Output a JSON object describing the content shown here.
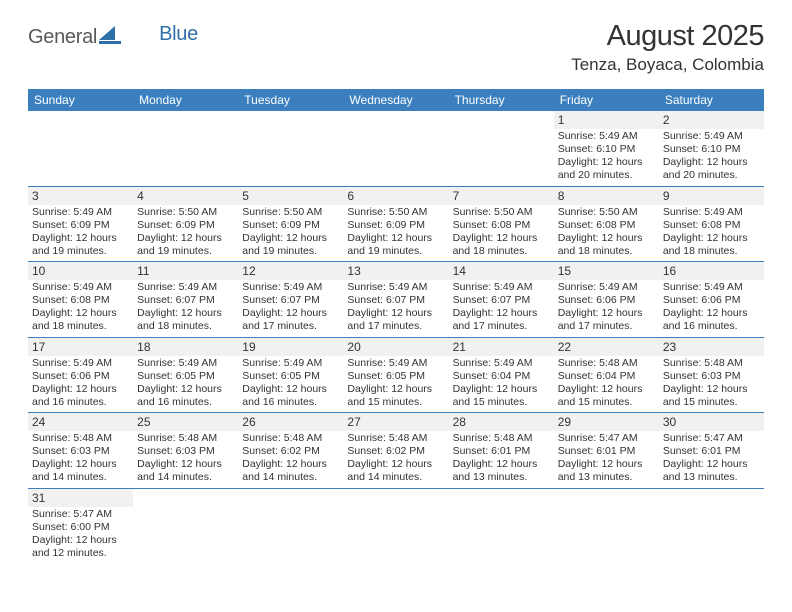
{
  "logo": {
    "text_general": "General",
    "text_blue": "Blue"
  },
  "title": "August 2025",
  "location": "Tenza, Boyaca, Colombia",
  "colors": {
    "header_bg": "#3b7fbf",
    "header_text": "#ffffff",
    "daynum_bg": "#f1f1f1",
    "border": "#3b7fbf",
    "logo_gray": "#5a5a5a",
    "logo_blue": "#2f6fa8"
  },
  "day_headers": [
    "Sunday",
    "Monday",
    "Tuesday",
    "Wednesday",
    "Thursday",
    "Friday",
    "Saturday"
  ],
  "weeks": [
    [
      null,
      null,
      null,
      null,
      null,
      {
        "n": "1",
        "sr": "5:49 AM",
        "ss": "6:10 PM",
        "dl": "12 hours and 20 minutes."
      },
      {
        "n": "2",
        "sr": "5:49 AM",
        "ss": "6:10 PM",
        "dl": "12 hours and 20 minutes."
      }
    ],
    [
      {
        "n": "3",
        "sr": "5:49 AM",
        "ss": "6:09 PM",
        "dl": "12 hours and 19 minutes."
      },
      {
        "n": "4",
        "sr": "5:50 AM",
        "ss": "6:09 PM",
        "dl": "12 hours and 19 minutes."
      },
      {
        "n": "5",
        "sr": "5:50 AM",
        "ss": "6:09 PM",
        "dl": "12 hours and 19 minutes."
      },
      {
        "n": "6",
        "sr": "5:50 AM",
        "ss": "6:09 PM",
        "dl": "12 hours and 19 minutes."
      },
      {
        "n": "7",
        "sr": "5:50 AM",
        "ss": "6:08 PM",
        "dl": "12 hours and 18 minutes."
      },
      {
        "n": "8",
        "sr": "5:50 AM",
        "ss": "6:08 PM",
        "dl": "12 hours and 18 minutes."
      },
      {
        "n": "9",
        "sr": "5:49 AM",
        "ss": "6:08 PM",
        "dl": "12 hours and 18 minutes."
      }
    ],
    [
      {
        "n": "10",
        "sr": "5:49 AM",
        "ss": "6:08 PM",
        "dl": "12 hours and 18 minutes."
      },
      {
        "n": "11",
        "sr": "5:49 AM",
        "ss": "6:07 PM",
        "dl": "12 hours and 18 minutes."
      },
      {
        "n": "12",
        "sr": "5:49 AM",
        "ss": "6:07 PM",
        "dl": "12 hours and 17 minutes."
      },
      {
        "n": "13",
        "sr": "5:49 AM",
        "ss": "6:07 PM",
        "dl": "12 hours and 17 minutes."
      },
      {
        "n": "14",
        "sr": "5:49 AM",
        "ss": "6:07 PM",
        "dl": "12 hours and 17 minutes."
      },
      {
        "n": "15",
        "sr": "5:49 AM",
        "ss": "6:06 PM",
        "dl": "12 hours and 17 minutes."
      },
      {
        "n": "16",
        "sr": "5:49 AM",
        "ss": "6:06 PM",
        "dl": "12 hours and 16 minutes."
      }
    ],
    [
      {
        "n": "17",
        "sr": "5:49 AM",
        "ss": "6:06 PM",
        "dl": "12 hours and 16 minutes."
      },
      {
        "n": "18",
        "sr": "5:49 AM",
        "ss": "6:05 PM",
        "dl": "12 hours and 16 minutes."
      },
      {
        "n": "19",
        "sr": "5:49 AM",
        "ss": "6:05 PM",
        "dl": "12 hours and 16 minutes."
      },
      {
        "n": "20",
        "sr": "5:49 AM",
        "ss": "6:05 PM",
        "dl": "12 hours and 15 minutes."
      },
      {
        "n": "21",
        "sr": "5:49 AM",
        "ss": "6:04 PM",
        "dl": "12 hours and 15 minutes."
      },
      {
        "n": "22",
        "sr": "5:48 AM",
        "ss": "6:04 PM",
        "dl": "12 hours and 15 minutes."
      },
      {
        "n": "23",
        "sr": "5:48 AM",
        "ss": "6:03 PM",
        "dl": "12 hours and 15 minutes."
      }
    ],
    [
      {
        "n": "24",
        "sr": "5:48 AM",
        "ss": "6:03 PM",
        "dl": "12 hours and 14 minutes."
      },
      {
        "n": "25",
        "sr": "5:48 AM",
        "ss": "6:03 PM",
        "dl": "12 hours and 14 minutes."
      },
      {
        "n": "26",
        "sr": "5:48 AM",
        "ss": "6:02 PM",
        "dl": "12 hours and 14 minutes."
      },
      {
        "n": "27",
        "sr": "5:48 AM",
        "ss": "6:02 PM",
        "dl": "12 hours and 14 minutes."
      },
      {
        "n": "28",
        "sr": "5:48 AM",
        "ss": "6:01 PM",
        "dl": "12 hours and 13 minutes."
      },
      {
        "n": "29",
        "sr": "5:47 AM",
        "ss": "6:01 PM",
        "dl": "12 hours and 13 minutes."
      },
      {
        "n": "30",
        "sr": "5:47 AM",
        "ss": "6:01 PM",
        "dl": "12 hours and 13 minutes."
      }
    ],
    [
      {
        "n": "31",
        "sr": "5:47 AM",
        "ss": "6:00 PM",
        "dl": "12 hours and 12 minutes."
      },
      null,
      null,
      null,
      null,
      null,
      null
    ]
  ],
  "labels": {
    "sunrise": "Sunrise:",
    "sunset": "Sunset:",
    "daylight": "Daylight:"
  }
}
